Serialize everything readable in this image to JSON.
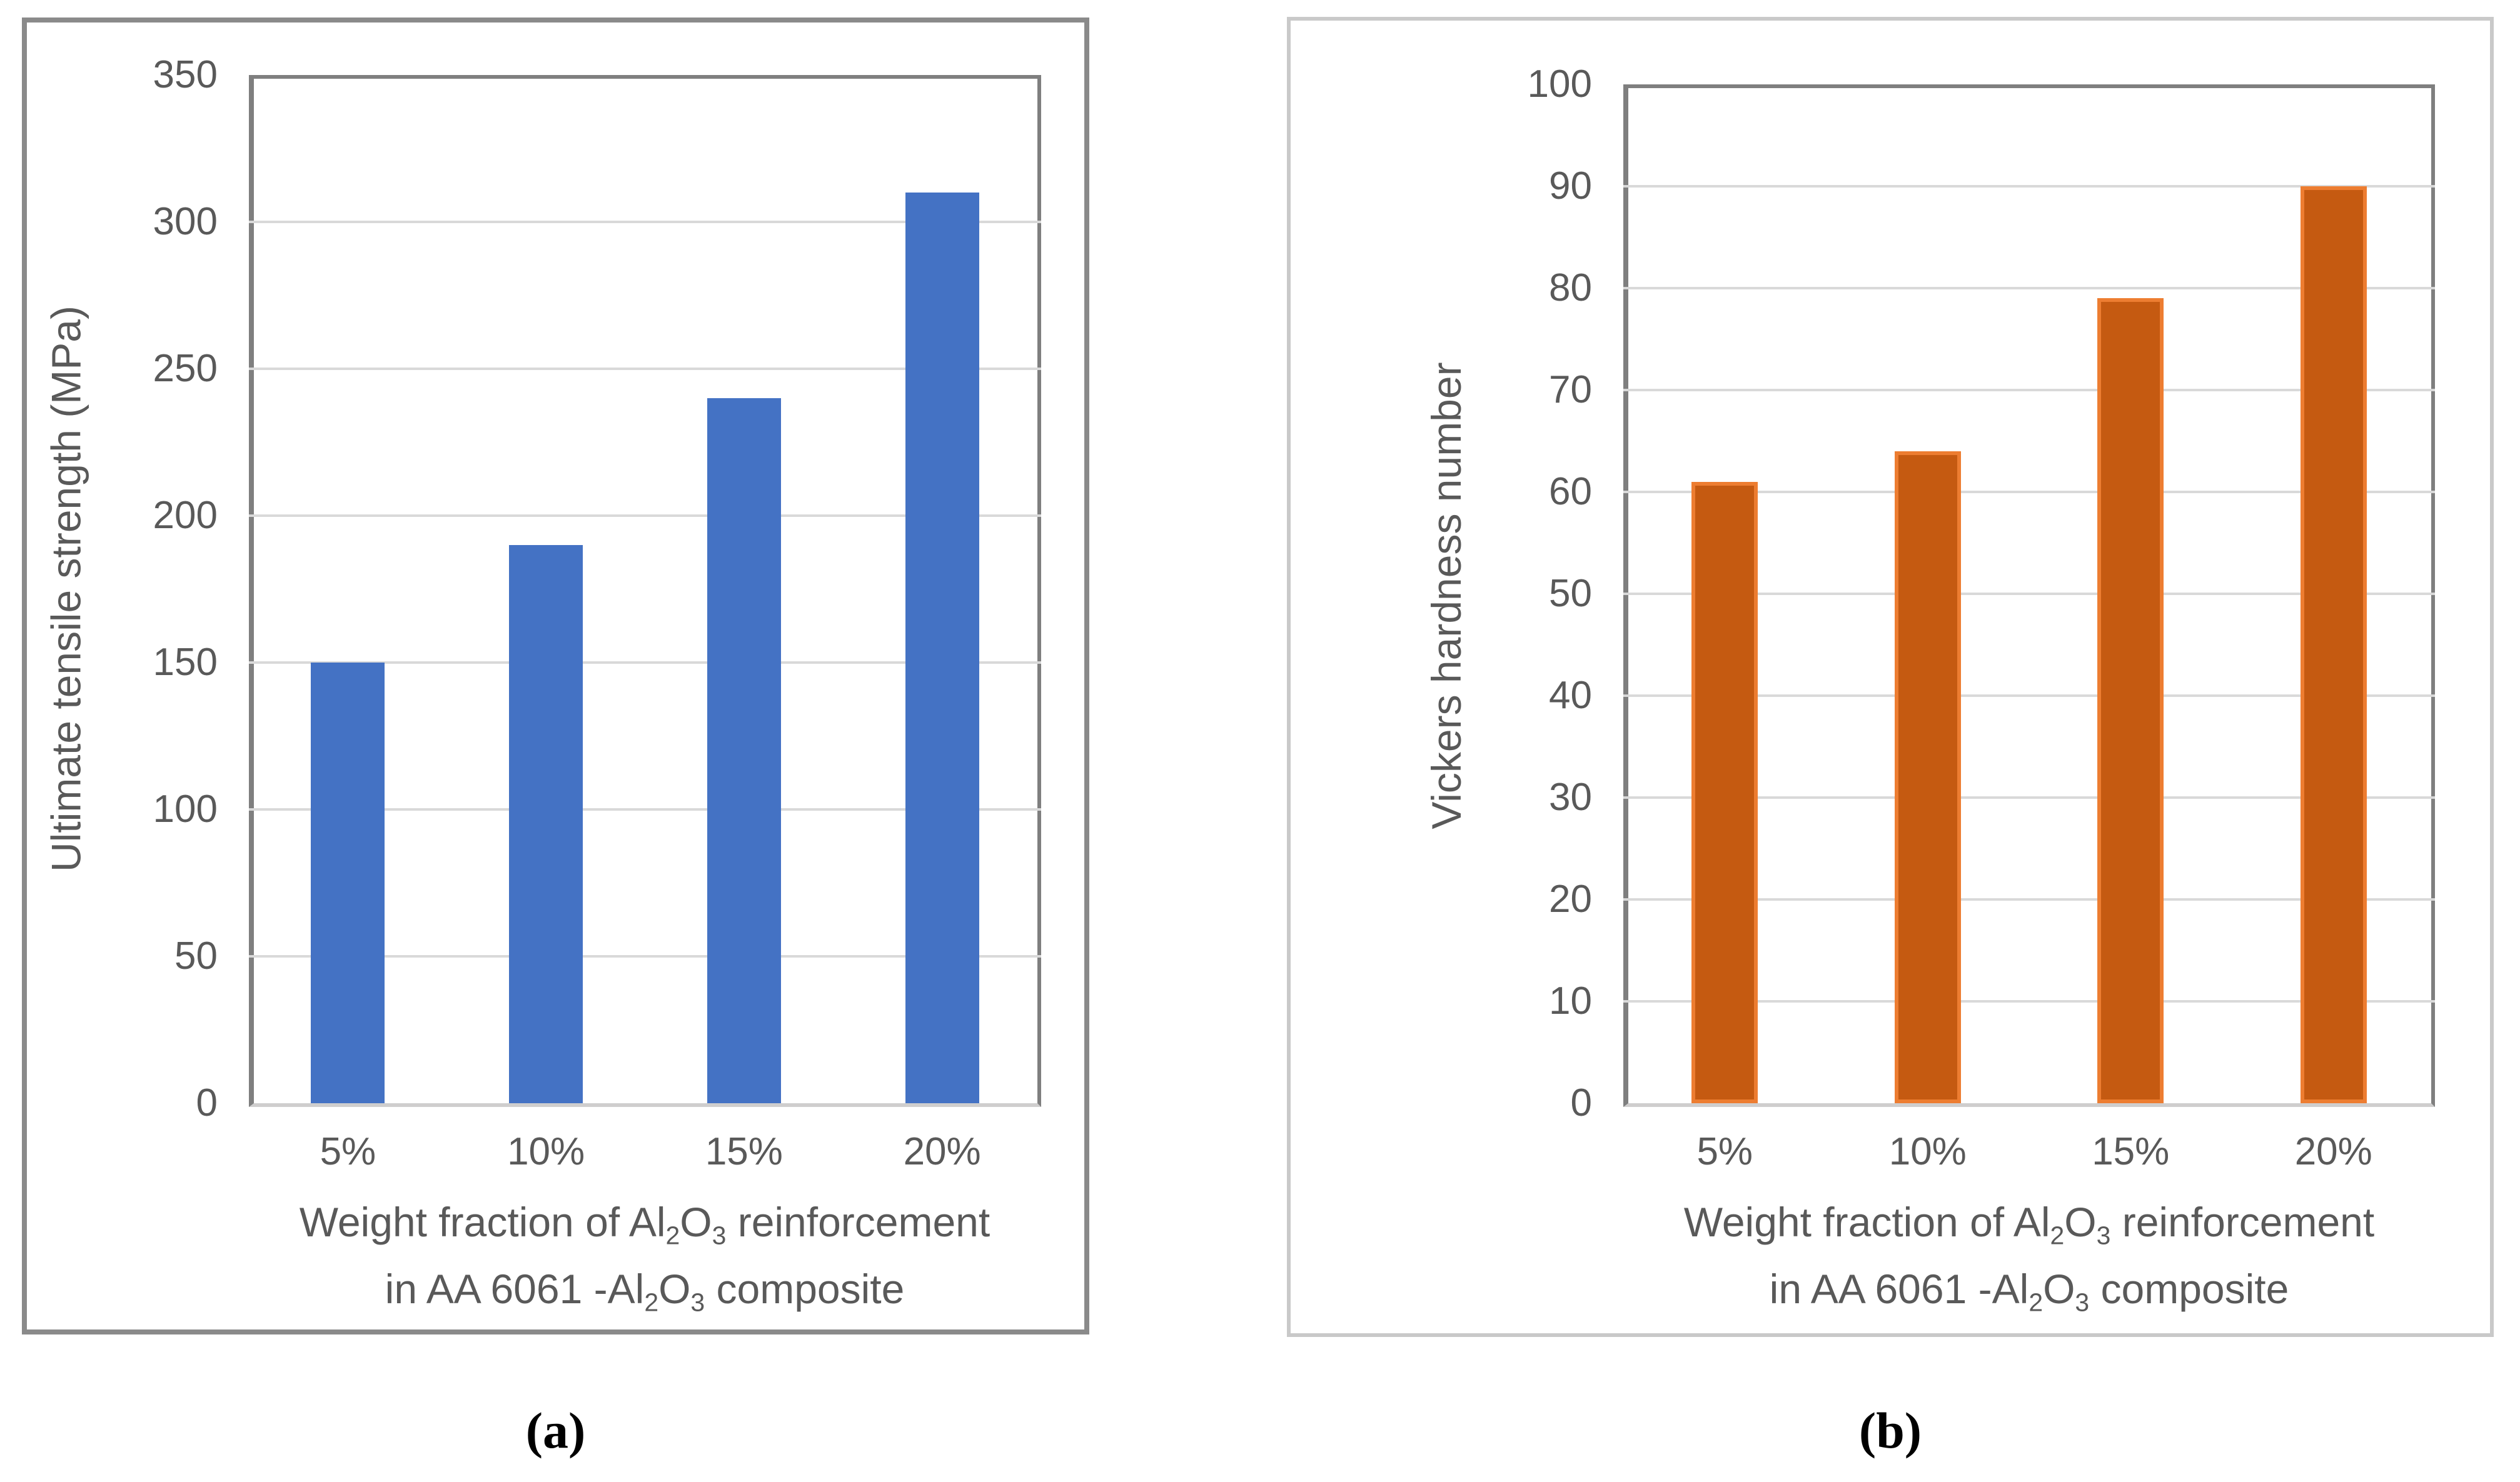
{
  "figure": {
    "captions": {
      "a": "(a)",
      "b": "(b)"
    }
  },
  "colors": {
    "bar_blue": "#4472C4",
    "bar_orange_fill": "#C55A11",
    "bar_orange_border": "#ED7D31",
    "gridline": "#D9D9D9",
    "axis_dark": "#7F7F7F",
    "axis_light": "#CFCECE",
    "panel_border_a": "#8A8A8A",
    "panel_border_b": "#C9C9C9",
    "label_text": "#595959"
  },
  "chart_data": [
    {
      "type": "bar",
      "panel": "a",
      "title": "",
      "categories": [
        "5%",
        "10%",
        "15%",
        "20%"
      ],
      "values": [
        150,
        190,
        240,
        310
      ],
      "ylabel": "Ultimate tensile strength (MPa)",
      "xlabel": "Weight fraction of Al₂O₃ reinforcement in AA 6061 -Al₂O₃ composite",
      "xlabel_lines": [
        [
          {
            "t": "Weight fraction of Al"
          },
          {
            "t": "2",
            "sub": true
          },
          {
            "t": "O"
          },
          {
            "t": "3",
            "sub": true
          },
          {
            "t": " reinforcement"
          }
        ],
        [
          {
            "t": "in AA 6061 -Al"
          },
          {
            "t": "2",
            "sub": true
          },
          {
            "t": "O"
          },
          {
            "t": "3",
            "sub": true
          },
          {
            "t": " composite"
          }
        ]
      ],
      "ylim": [
        0,
        350
      ],
      "ytick_step": 50,
      "yticks": [
        0,
        50,
        100,
        150,
        200,
        250,
        300,
        350
      ],
      "grid": true,
      "legend": null,
      "bar_color": "#4472C4",
      "bar_border_color": null
    },
    {
      "type": "bar",
      "panel": "b",
      "title": "",
      "categories": [
        "5%",
        "10%",
        "15%",
        "20%"
      ],
      "values": [
        61,
        64,
        79,
        90
      ],
      "ylabel": "Vickers hardness number",
      "xlabel": "Weight fraction of Al₂O₃ reinforcement in AA 6061 -Al₂O₃ composite",
      "xlabel_lines": [
        [
          {
            "t": "Weight fraction of Al"
          },
          {
            "t": "2",
            "sub": true
          },
          {
            "t": "O"
          },
          {
            "t": "3",
            "sub": true
          },
          {
            "t": " reinforcement"
          }
        ],
        [
          {
            "t": "in AA 6061 -Al"
          },
          {
            "t": "2",
            "sub": true
          },
          {
            "t": "O"
          },
          {
            "t": "3",
            "sub": true
          },
          {
            "t": " composite"
          }
        ]
      ],
      "ylim": [
        0,
        100
      ],
      "ytick_step": 10,
      "yticks": [
        0,
        10,
        20,
        30,
        40,
        50,
        60,
        70,
        80,
        90,
        100
      ],
      "grid": true,
      "legend": null,
      "bar_color": "#C55A11",
      "bar_border_color": "#ED7D31"
    }
  ]
}
